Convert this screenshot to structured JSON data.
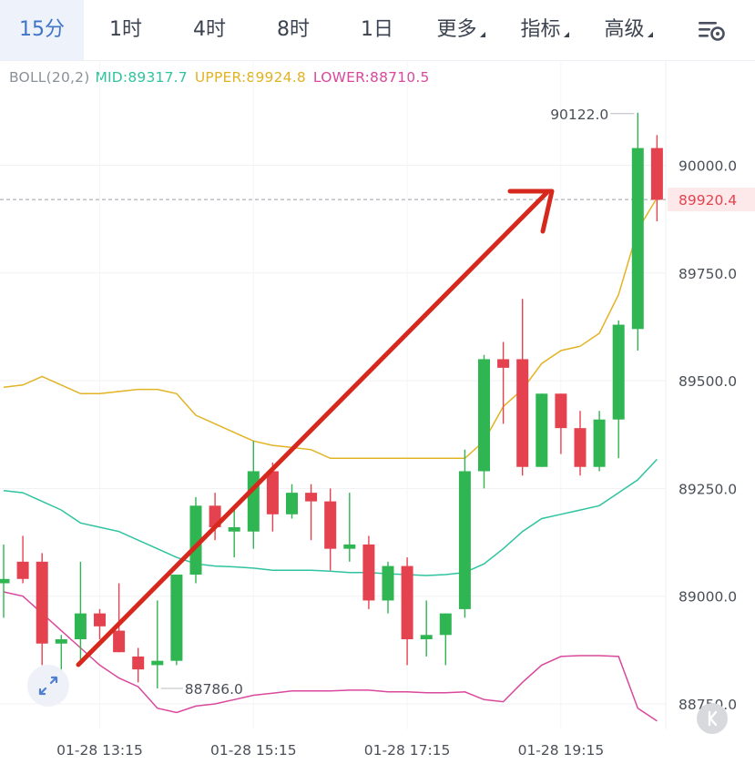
{
  "tabs": [
    {
      "label": "15分",
      "active": true,
      "caret": false
    },
    {
      "label": "1时",
      "active": false,
      "caret": false
    },
    {
      "label": "4时",
      "active": false,
      "caret": false
    },
    {
      "label": "8时",
      "active": false,
      "caret": false
    },
    {
      "label": "1日",
      "active": false,
      "caret": false
    },
    {
      "label": "更多",
      "active": false,
      "caret": true
    },
    {
      "label": "指标",
      "active": false,
      "caret": true
    },
    {
      "label": "高级",
      "active": false,
      "caret": true
    }
  ],
  "icons": {
    "settings": "chart-settings-icon",
    "zoom": "expand-arrows-icon",
    "collapse": "collapse-icon"
  },
  "legend": {
    "label": "BOLL(20,2)",
    "mid": "MID:89317.7",
    "upper": "UPPER:89924.8",
    "lower": "LOWER:88710.5"
  },
  "colors": {
    "up_candle": "#2fb551",
    "down_candle": "#e5424f",
    "mid_line": "#2fc3a0",
    "upper_line": "#e2b323",
    "lower_line": "#d9489c",
    "arrow": "#d6281c",
    "accent": "#3f74c9",
    "current_price": "#e5424f"
  },
  "chart_data": {
    "type": "candlestick",
    "ylim": [
      88700,
      90260
    ],
    "y_ticks": [
      "90000.0",
      "89750.0",
      "89500.0",
      "89250.0",
      "89000.0",
      "88750.0"
    ],
    "x_ticks": [
      {
        "index": 5,
        "label": "01-28 13:15"
      },
      {
        "index": 13,
        "label": "01-28 15:15"
      },
      {
        "index": 21,
        "label": "01-28 17:15"
      },
      {
        "index": 29,
        "label": "01-28 19:15"
      }
    ],
    "current_price": 89920.4,
    "current_price_label": "89920.4",
    "max_label": "90122.0",
    "min_label": "88786.0",
    "candles": [
      {
        "o": 89030,
        "h": 89120,
        "l": 88950,
        "c": 89040
      },
      {
        "o": 89080,
        "h": 89140,
        "l": 89030,
        "c": 89040
      },
      {
        "o": 89080,
        "h": 89100,
        "l": 88840,
        "c": 88890
      },
      {
        "o": 88890,
        "h": 88910,
        "l": 88810,
        "c": 88900
      },
      {
        "o": 88900,
        "h": 89080,
        "l": 88840,
        "c": 88960
      },
      {
        "o": 88960,
        "h": 88970,
        "l": 88900,
        "c": 88930
      },
      {
        "o": 88920,
        "h": 89030,
        "l": 88870,
        "c": 88870
      },
      {
        "o": 88860,
        "h": 88880,
        "l": 88800,
        "c": 88830
      },
      {
        "o": 88840,
        "h": 88990,
        "l": 88786,
        "c": 88850
      },
      {
        "o": 88850,
        "h": 89050,
        "l": 88840,
        "c": 89050
      },
      {
        "o": 89050,
        "h": 89230,
        "l": 89030,
        "c": 89210
      },
      {
        "o": 89210,
        "h": 89240,
        "l": 89130,
        "c": 89160
      },
      {
        "o": 89150,
        "h": 89200,
        "l": 89090,
        "c": 89160
      },
      {
        "o": 89150,
        "h": 89360,
        "l": 89110,
        "c": 89290
      },
      {
        "o": 89290,
        "h": 89310,
        "l": 89150,
        "c": 89190
      },
      {
        "o": 89190,
        "h": 89260,
        "l": 89180,
        "c": 89240
      },
      {
        "o": 89240,
        "h": 89260,
        "l": 89130,
        "c": 89220
      },
      {
        "o": 89220,
        "h": 89250,
        "l": 89060,
        "c": 89110
      },
      {
        "o": 89110,
        "h": 89240,
        "l": 89080,
        "c": 89120
      },
      {
        "o": 89120,
        "h": 89140,
        "l": 88970,
        "c": 88990
      },
      {
        "o": 88990,
        "h": 89080,
        "l": 88960,
        "c": 89070
      },
      {
        "o": 89070,
        "h": 89090,
        "l": 88840,
        "c": 88900
      },
      {
        "o": 88900,
        "h": 88990,
        "l": 88860,
        "c": 88910
      },
      {
        "o": 88910,
        "h": 88960,
        "l": 88840,
        "c": 88960
      },
      {
        "o": 88970,
        "h": 89340,
        "l": 88950,
        "c": 89290
      },
      {
        "o": 89290,
        "h": 89560,
        "l": 89250,
        "c": 89550
      },
      {
        "o": 89550,
        "h": 89590,
        "l": 89400,
        "c": 89530
      },
      {
        "o": 89550,
        "h": 89690,
        "l": 89280,
        "c": 89300
      },
      {
        "o": 89300,
        "h": 89470,
        "l": 89300,
        "c": 89470
      },
      {
        "o": 89470,
        "h": 89470,
        "l": 89330,
        "c": 89390
      },
      {
        "o": 89390,
        "h": 89430,
        "l": 89280,
        "c": 89300
      },
      {
        "o": 89300,
        "h": 89430,
        "l": 89290,
        "c": 89410
      },
      {
        "o": 89410,
        "h": 89640,
        "l": 89320,
        "c": 89630
      },
      {
        "o": 89620,
        "h": 90122,
        "l": 89570,
        "c": 90040
      },
      {
        "o": 90040,
        "h": 90070,
        "l": 89870,
        "c": 89920
      }
    ],
    "bands": {
      "upper": [
        89485,
        89490,
        89510,
        89490,
        89470,
        89470,
        89475,
        89480,
        89480,
        89470,
        89420,
        89400,
        89380,
        89360,
        89350,
        89345,
        89340,
        89320,
        89320,
        89320,
        89320,
        89320,
        89320,
        89320,
        89320,
        89360,
        89440,
        89480,
        89540,
        89570,
        89580,
        89610,
        89700,
        89850,
        89924.8
      ],
      "mid": [
        89245,
        89240,
        89220,
        89200,
        89170,
        89160,
        89150,
        89130,
        89110,
        89090,
        89075,
        89070,
        89068,
        89065,
        89060,
        89060,
        89060,
        89058,
        89055,
        89055,
        89052,
        89050,
        89048,
        89050,
        89055,
        89075,
        89110,
        89150,
        89180,
        89190,
        89200,
        89210,
        89240,
        89270,
        89317.7
      ],
      "lower": [
        89010,
        89000,
        88960,
        88920,
        88880,
        88840,
        88810,
        88790,
        88740,
        88730,
        88745,
        88750,
        88760,
        88770,
        88775,
        88780,
        88780,
        88780,
        88782,
        88782,
        88778,
        88778,
        88776,
        88776,
        88778,
        88760,
        88755,
        88800,
        88840,
        88860,
        88862,
        88862,
        88860,
        88740,
        88710.5
      ]
    }
  }
}
